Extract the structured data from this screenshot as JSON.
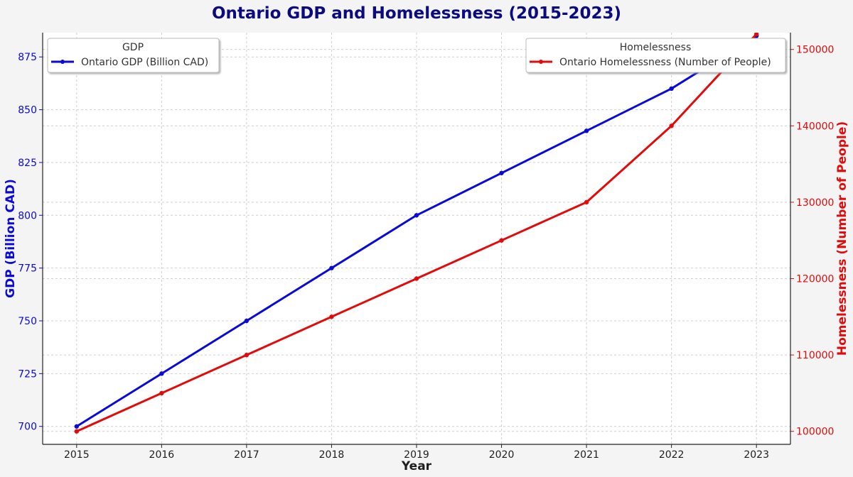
{
  "colors": {
    "gdp": "#0a0ad8",
    "homeless": "#e10b0b",
    "title": "#0b0b80",
    "text": "#1e1e1e"
  },
  "chart_data": {
    "type": "line",
    "title": "Ontario GDP and Homelessness (2015-2023)",
    "xlabel": "Year",
    "ylabel_left": "GDP (Billion CAD)",
    "ylabel_right": "Homelessness (Number of People)",
    "x": [
      2015,
      2016,
      2017,
      2018,
      2019,
      2020,
      2021,
      2022,
      2023
    ],
    "x_tick_labels": [
      "2015",
      "2016",
      "2017",
      "2018",
      "2019",
      "2020",
      "2021",
      "2022",
      "2023"
    ],
    "y_left_ticks": [
      "700",
      "725",
      "750",
      "775",
      "800",
      "825",
      "850",
      "875"
    ],
    "y_right_ticks": [
      "100000",
      "110000",
      "120000",
      "130000",
      "140000",
      "150000"
    ],
    "ylim_left": [
      691.5,
      886.5
    ],
    "ylim_right": [
      98300,
      152200
    ],
    "grid": true,
    "series": [
      {
        "name": "Ontario GDP (Billion CAD)",
        "axis": "left",
        "values": [
          700,
          725,
          750,
          775,
          800,
          820,
          840,
          860,
          885
        ]
      },
      {
        "name": "Ontario Homelessness (Number of People)",
        "axis": "right",
        "values": [
          100000,
          105000,
          110000,
          115000,
          120000,
          125000,
          130000,
          140000,
          152000
        ]
      }
    ],
    "legends": [
      {
        "title": "GDP",
        "entries": [
          "Ontario GDP (Billion CAD)"
        ],
        "placement": "top-left"
      },
      {
        "title": "Homelessness",
        "entries": [
          "Ontario Homelessness (Number of People)"
        ],
        "placement": "top-right"
      }
    ]
  }
}
